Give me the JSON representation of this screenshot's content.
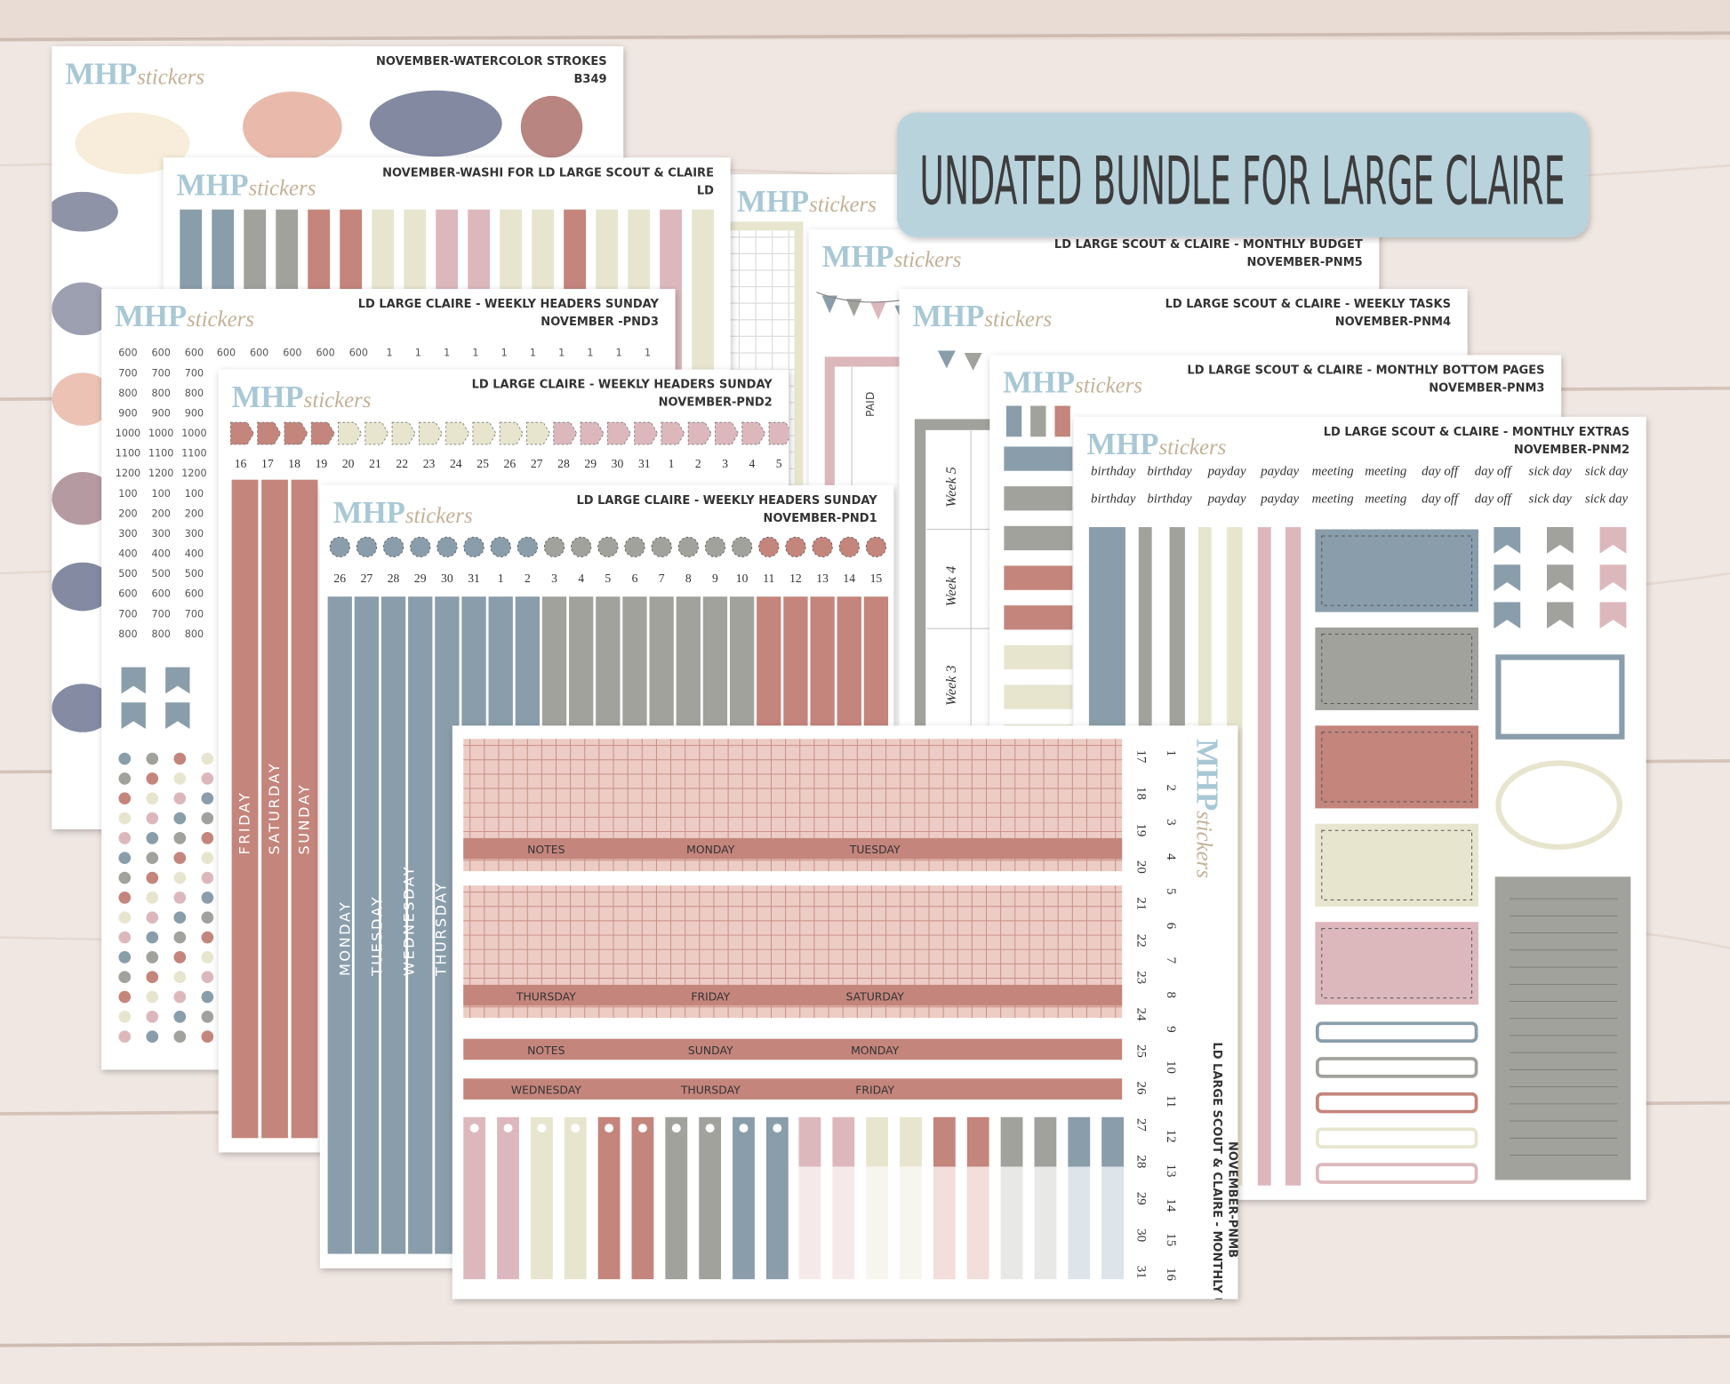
{
  "banner": "UNDATED BUNDLE FOR LARGE CLAIRE",
  "logo": {
    "mhp": "MHP",
    "script": "stickers"
  },
  "sheets": [
    {
      "title": "NOVEMBER-WATERCOLOR STROKES",
      "code": "B349"
    },
    {
      "title": "NOVEMBER-WASHI FOR LD LARGE SCOUT & CLAIRE",
      "code": "LD"
    },
    {
      "title": "LD LARGE SCOUT & CLAIRE - MONTHLY BUDGET",
      "code": "NOVEMBER-PNM5"
    },
    {
      "title": "LD LARGE SCOUT & CLAIRE - WEEKLY TASKS",
      "code": "NOVEMBER-PNM4"
    },
    {
      "title": "LD LARGE SCOUT & CLAIRE - MONTHLY BOTTOM PAGES",
      "code": "NOVEMBER-PNM3"
    },
    {
      "title": "LD LARGE SCOUT & CLAIRE - MONTHLY EXTRAS",
      "code": "NOVEMBER-PNM2"
    },
    {
      "title": "LD LARGE CLAIRE - WEEKLY HEADERS SUNDAY",
      "code": "NOVEMBER -PND3"
    },
    {
      "title": "LD LARGE CLAIRE - WEEKLY HEADERS SUNDAY",
      "code": "NOVEMBER-PND2"
    },
    {
      "title": "LD LARGE CLAIRE - WEEKLY HEADERS SUNDAY",
      "code": "NOVEMBER-PND1"
    },
    {
      "title": "LD LARGE SCOUT & CLAIRE - MONTHLY UNDATED",
      "code": "NOVEMBER-PNMB"
    }
  ],
  "pnd3": {
    "hours": [
      "600",
      "700",
      "800",
      "900",
      "1000",
      "1100",
      "1200",
      "100",
      "200",
      "300",
      "400",
      "500",
      "600",
      "700",
      "800"
    ],
    "top": [
      "600",
      "600",
      "600",
      "600",
      "600",
      "1",
      "1",
      "1",
      "1",
      "1",
      "1",
      "1",
      "1",
      "1",
      "1"
    ]
  },
  "pnd2": {
    "dates": [
      "16",
      "17",
      "18",
      "19",
      "20",
      "21",
      "22",
      "23",
      "24",
      "25",
      "26",
      "27",
      "28",
      "29",
      "30",
      "31",
      "1",
      "2",
      "3",
      "4",
      "5"
    ],
    "days": [
      "FRIDAY",
      "SATURDAY",
      "SUNDAY"
    ]
  },
  "pnd1": {
    "dates": [
      "26",
      "27",
      "28",
      "29",
      "30",
      "31",
      "1",
      "2",
      "3",
      "4",
      "5",
      "6",
      "7",
      "8",
      "9",
      "10",
      "11",
      "12",
      "13",
      "14",
      "15"
    ],
    "days": [
      "MONDAY",
      "TUESDAY",
      "WEDNESDAY",
      "THURSDAY"
    ]
  },
  "pnm5": {
    "paid": "PAID"
  },
  "pnm4": {
    "weeks": [
      "Week 5",
      "Week 4",
      "Week 3"
    ]
  },
  "pnm2": {
    "words": [
      "birthday",
      "birthday",
      "payday",
      "payday",
      "meeting",
      "meeting",
      "day off",
      "day off",
      "sick day",
      "sick day"
    ]
  },
  "pnmb": {
    "rows": [
      [
        "NOTES",
        "MONDAY",
        "TUESDAY"
      ],
      [
        "THURSDAY",
        "FRIDAY",
        "SATURDAY"
      ],
      [
        "NOTES",
        "SUNDAY",
        "MONDAY"
      ],
      [
        "WEDNESDAY",
        "THURSDAY",
        "FRIDAY"
      ]
    ],
    "dates_a": [
      "17",
      "18",
      "19",
      "20",
      "21",
      "22",
      "23",
      "24",
      "25",
      "26",
      "27",
      "28",
      "29",
      "30",
      "31"
    ],
    "dates_b": [
      "1",
      "2",
      "3",
      "4",
      "5",
      "6",
      "7",
      "8",
      "9",
      "10",
      "11",
      "12",
      "13",
      "14",
      "15",
      "16"
    ]
  }
}
